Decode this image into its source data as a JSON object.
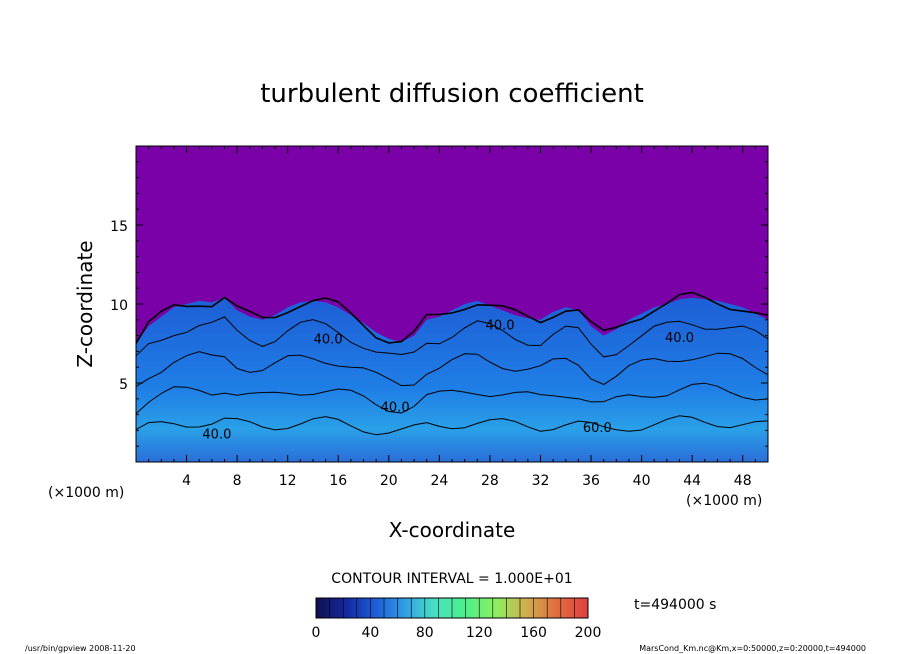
{
  "chart_data": {
    "type": "heatmap",
    "title": "turbulent diffusion coefficient",
    "xlabel": "X-coordinate",
    "ylabel": "Z-coordinate",
    "x_unit": "(×1000 m)",
    "y_unit": "(×1000 m)",
    "xlim": [
      0,
      50
    ],
    "ylim": [
      0,
      20
    ],
    "x_ticks": [
      4,
      8,
      12,
      16,
      20,
      24,
      28,
      32,
      36,
      40,
      44,
      48
    ],
    "y_ticks": [
      5,
      10,
      15
    ],
    "contour_interval_text": "CONTOUR INTERVAL = 1.000E+01",
    "time_label": "t=494000 s",
    "colorbar": {
      "min": 0,
      "max": 200,
      "ticks": [
        0,
        40,
        80,
        120,
        160,
        200
      ],
      "colors": [
        "#101050",
        "#1428a0",
        "#1e5ed6",
        "#32a0e6",
        "#48e2c0",
        "#4cf08a",
        "#8cf060",
        "#d0b050",
        "#e07040",
        "#e04040"
      ]
    },
    "background_color": "#7a00a8",
    "contour_labels": [
      {
        "text": "40.0",
        "x": 6.4,
        "z": 1.5
      },
      {
        "text": "40.0",
        "x": 15.2,
        "z": 7.5
      },
      {
        "text": "40.0",
        "x": 20.5,
        "z": 3.2
      },
      {
        "text": "40.0",
        "x": 28.8,
        "z": 8.4
      },
      {
        "text": "60.0",
        "x": 36.5,
        "z": 1.9
      },
      {
        "text": "40.0",
        "x": 43.0,
        "z": 7.6
      }
    ],
    "field_top_height": [
      [
        0,
        7.5
      ],
      [
        1,
        8.6
      ],
      [
        2,
        9.2
      ],
      [
        3,
        9.8
      ],
      [
        4,
        10.0
      ],
      [
        5,
        10.2
      ],
      [
        6,
        10.1
      ],
      [
        7,
        10.4
      ],
      [
        8,
        9.6
      ],
      [
        9,
        9.2
      ],
      [
        10,
        9.0
      ],
      [
        11,
        9.3
      ],
      [
        12,
        9.8
      ],
      [
        13,
        10.1
      ],
      [
        14,
        10.2
      ],
      [
        15,
        10.1
      ],
      [
        16,
        9.8
      ],
      [
        17,
        9.3
      ],
      [
        18,
        8.8
      ],
      [
        19,
        8.2
      ],
      [
        20,
        7.8
      ],
      [
        21,
        7.6
      ],
      [
        22,
        8.0
      ],
      [
        23,
        9.0
      ],
      [
        24,
        9.2
      ],
      [
        25,
        9.6
      ],
      [
        26,
        10.0
      ],
      [
        27,
        10.2
      ],
      [
        28,
        9.9
      ],
      [
        29,
        9.6
      ],
      [
        30,
        9.3
      ],
      [
        31,
        9.1
      ],
      [
        32,
        9.0
      ],
      [
        33,
        9.5
      ],
      [
        34,
        9.8
      ],
      [
        35,
        9.6
      ],
      [
        36,
        8.6
      ],
      [
        37,
        8.0
      ],
      [
        38,
        8.4
      ],
      [
        39,
        9.0
      ],
      [
        40,
        9.4
      ],
      [
        41,
        9.8
      ],
      [
        42,
        10.0
      ],
      [
        43,
        10.3
      ],
      [
        44,
        10.4
      ],
      [
        45,
        10.3
      ],
      [
        46,
        10.2
      ],
      [
        47,
        10.0
      ],
      [
        48,
        9.8
      ],
      [
        49,
        9.4
      ],
      [
        50,
        9.0
      ]
    ]
  },
  "footer": {
    "left": "/usr/bin/gpview   2008-11-20",
    "right": "MarsCond_Km.nc@Km,x=0:50000,z=0:20000,t=494000"
  }
}
